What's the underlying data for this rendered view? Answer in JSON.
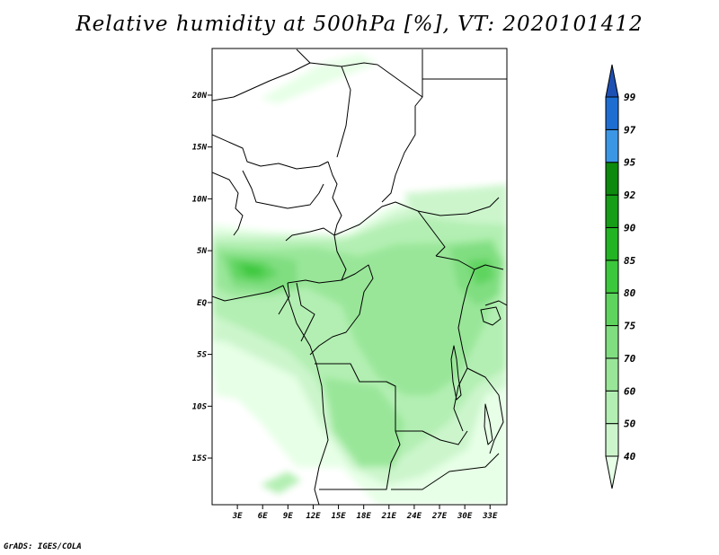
{
  "title": "Relative humidity at 500hPa [%], VT: 2020101412",
  "credit": "GrADS: IGES/COLA",
  "map": {
    "lat_labels": [
      "20N",
      "15N",
      "10N",
      "5N",
      "EQ",
      "5S",
      "10S",
      "15S"
    ],
    "lon_labels": [
      "3E",
      "6E",
      "9E",
      "12E",
      "15E",
      "18E",
      "21E",
      "24E",
      "27E",
      "30E",
      "33E"
    ],
    "lat_values": [
      20,
      15,
      10,
      5,
      0,
      -5,
      -10,
      -15
    ],
    "lon_values": [
      3,
      6,
      9,
      12,
      15,
      18,
      21,
      24,
      27,
      30,
      33
    ],
    "extent": {
      "lon_min": 0,
      "lon_max": 35,
      "lat_min": -19.5,
      "lat_max": 24.5
    }
  },
  "colorbar": {
    "labels": [
      "40",
      "50",
      "60",
      "70",
      "75",
      "80",
      "85",
      "90",
      "92",
      "95",
      "97",
      "99"
    ],
    "colors": [
      "#e6ffe6",
      "#ccf5cc",
      "#b3efb3",
      "#99e699",
      "#80de80",
      "#5ed45e",
      "#3cc83c",
      "#22b422",
      "#169e16",
      "#0d8a0d",
      "#3c96e6",
      "#1e6ed2",
      "#1e50b4"
    ]
  },
  "colors": {
    "green_light": "#e6ffe6",
    "green_mid": "#99e699",
    "green_dark": "#3cc83c",
    "border": "#000000"
  }
}
